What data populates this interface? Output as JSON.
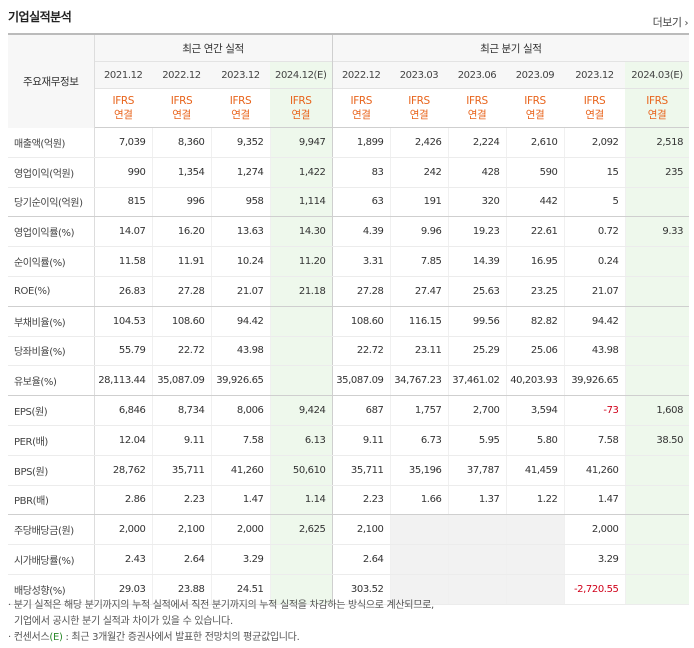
{
  "header": {
    "title": "기업실적분석",
    "more_label": "더보기",
    "more_icon": "chevron-right"
  },
  "table": {
    "row_header": "주요재무정보",
    "group_annual": "최근 연간 실적",
    "group_quarter": "최근 분기 실적",
    "periods": [
      "2021.12",
      "2022.12",
      "2023.12",
      "2024.12(E)",
      "2022.12",
      "2023.03",
      "2023.06",
      "2023.09",
      "2023.12",
      "2024.03(E)"
    ],
    "ifrs_top": "IFRS",
    "ifrs_bottom": "연결",
    "rows": [
      {
        "label": "매출액(억원)",
        "values": [
          "7,039",
          "8,360",
          "9,352",
          "9,947",
          "1,899",
          "2,426",
          "2,224",
          "2,610",
          "2,092",
          "2,518"
        ]
      },
      {
        "label": "영업이익(억원)",
        "values": [
          "990",
          "1,354",
          "1,274",
          "1,422",
          "83",
          "242",
          "428",
          "590",
          "15",
          "235"
        ]
      },
      {
        "label": "당기순이익(억원)",
        "values": [
          "815",
          "996",
          "958",
          "1,114",
          "63",
          "191",
          "320",
          "442",
          "5",
          ""
        ]
      },
      {
        "label": "영업이익률(%)",
        "values": [
          "14.07",
          "16.20",
          "13.63",
          "14.30",
          "4.39",
          "9.96",
          "19.23",
          "22.61",
          "0.72",
          "9.33"
        ]
      },
      {
        "label": "순이익률(%)",
        "values": [
          "11.58",
          "11.91",
          "10.24",
          "11.20",
          "3.31",
          "7.85",
          "14.39",
          "16.95",
          "0.24",
          ""
        ]
      },
      {
        "label": "ROE(%)",
        "values": [
          "26.83",
          "27.28",
          "21.07",
          "21.18",
          "27.28",
          "27.47",
          "25.63",
          "23.25",
          "21.07",
          ""
        ]
      },
      {
        "label": "부채비율(%)",
        "values": [
          "104.53",
          "108.60",
          "94.42",
          "",
          "108.60",
          "116.15",
          "99.56",
          "82.82",
          "94.42",
          ""
        ]
      },
      {
        "label": "당좌비율(%)",
        "values": [
          "55.79",
          "22.72",
          "43.98",
          "",
          "22.72",
          "23.11",
          "25.29",
          "25.06",
          "43.98",
          ""
        ]
      },
      {
        "label": "유보율(%)",
        "values": [
          "28,113.44",
          "35,087.09",
          "39,926.65",
          "",
          "35,087.09",
          "34,767.23",
          "37,461.02",
          "40,203.93",
          "39,926.65",
          ""
        ]
      },
      {
        "label": "EPS(원)",
        "values": [
          "6,846",
          "8,734",
          "8,006",
          "9,424",
          "687",
          "1,757",
          "2,700",
          "3,594",
          "-73",
          "1,608"
        ]
      },
      {
        "label": "PER(배)",
        "values": [
          "12.04",
          "9.11",
          "7.58",
          "6.13",
          "9.11",
          "6.73",
          "5.95",
          "5.80",
          "7.58",
          "38.50"
        ]
      },
      {
        "label": "BPS(원)",
        "values": [
          "28,762",
          "35,711",
          "41,260",
          "50,610",
          "35,711",
          "35,196",
          "37,787",
          "41,459",
          "41,260",
          ""
        ]
      },
      {
        "label": "PBR(배)",
        "values": [
          "2.86",
          "2.23",
          "1.47",
          "1.14",
          "2.23",
          "1.66",
          "1.37",
          "1.22",
          "1.47",
          ""
        ]
      },
      {
        "label": "주당배당금(원)",
        "values": [
          "2,000",
          "2,100",
          "2,000",
          "2,625",
          "2,100",
          "",
          "",
          "",
          "2,000",
          ""
        ]
      },
      {
        "label": "시가배당률(%)",
        "values": [
          "2.43",
          "2.64",
          "3.29",
          "",
          "2.64",
          "",
          "",
          "",
          "3.29",
          ""
        ]
      },
      {
        "label": "배당성향(%)",
        "values": [
          "29.03",
          "23.88",
          "24.51",
          "",
          "303.52",
          "",
          "",
          "",
          "-2,720.55",
          ""
        ]
      }
    ]
  },
  "notes": {
    "line1": "· 분기 실적은 해당 분기까지의 누적 실적에서 직전 분기까지의 누적 실적을 차감하는 방식으로 계산되므로,",
    "line2": "  기업에서 공시한 분기 실적과 차이가 있을 수 있습니다.",
    "line3_prefix": "· 컨센서스",
    "line3_mark": "(E)",
    "line3_suffix": " : 최근 3개월간 증권사에서 발표한 전망치의 평균값입니다."
  },
  "colors": {
    "ifrs": "#e8641c",
    "estimate_bg": "#eef8ec",
    "negative": "#d0021b",
    "estimate_mark": "#2b8a2b"
  }
}
